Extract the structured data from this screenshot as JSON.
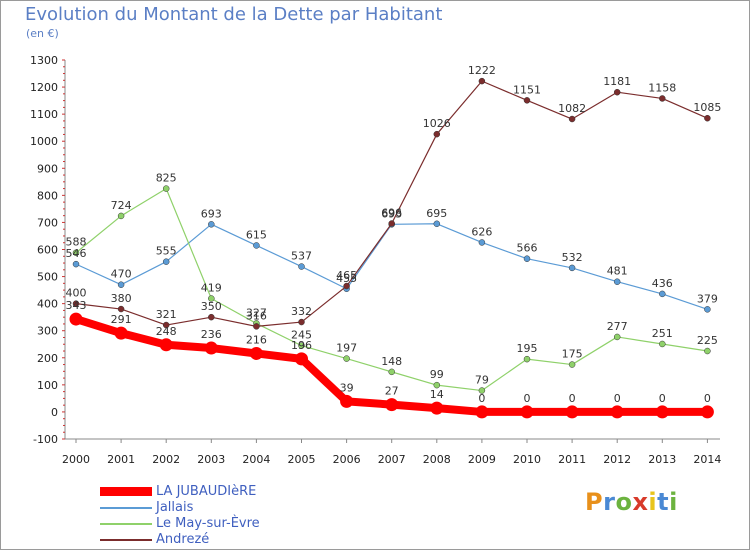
{
  "header": {
    "title": "Evolution du Montant de la Dette par Habitant",
    "subtitle": "(en €)"
  },
  "logo": {
    "text": "Proxiti",
    "letter_colors": [
      "#e8901b",
      "#4a89d4",
      "#6cb33f",
      "#d83a2a",
      "#e8c41b",
      "#4a89d4",
      "#6cb33f"
    ]
  },
  "chart_data": {
    "type": "line",
    "title": "Evolution du Montant de la Dette par Habitant",
    "subtitle": "(en €)",
    "xlabel": "",
    "ylabel": "",
    "x": [
      "2000",
      "2001",
      "2002",
      "2003",
      "2004",
      "2005",
      "2006",
      "2007",
      "2008",
      "2009",
      "2010",
      "2011",
      "2012",
      "2013",
      "2014"
    ],
    "ylim": [
      -100,
      1300
    ],
    "yticks": [
      "-100",
      "0",
      "100",
      "200",
      "300",
      "400",
      "500",
      "600",
      "700",
      "800",
      "900",
      "1000",
      "1100",
      "1200",
      "1300"
    ],
    "grid": false,
    "legend_position": "bottom-left",
    "series": [
      {
        "name": "LA JUBAUDIèRE",
        "color": "#ff0000",
        "emphasis": true,
        "values": [
          343,
          291,
          248,
          236,
          216,
          196,
          39,
          27,
          14,
          0,
          0,
          0,
          0,
          0,
          0
        ],
        "labels": [
          "343",
          "291",
          "248",
          "236",
          "216",
          "196",
          "39",
          "27",
          "14",
          "0",
          "0",
          "0",
          "0",
          "0",
          "0"
        ]
      },
      {
        "name": "Jallais",
        "color": "#5b9bd5",
        "emphasis": false,
        "values": [
          546,
          470,
          555,
          693,
          615,
          537,
          455,
          693,
          695,
          626,
          566,
          532,
          481,
          436,
          379
        ],
        "labels": [
          "546",
          "470",
          "555",
          "693",
          "615",
          "537",
          "455",
          "693",
          "695",
          "626",
          "566",
          "532",
          "481",
          "436",
          "379"
        ]
      },
      {
        "name": "Le May-sur-Èvre",
        "color": "#8fd16a",
        "emphasis": false,
        "values": [
          588,
          724,
          825,
          419,
          327,
          245,
          197,
          148,
          99,
          79,
          195,
          175,
          277,
          251,
          225
        ],
        "labels": [
          "588",
          "724",
          "825",
          "419",
          "327",
          "245",
          "197",
          "148",
          "99",
          "79",
          "195",
          "175",
          "277",
          "251",
          "225"
        ]
      },
      {
        "name": "Andrezé",
        "color": "#7b2d2d",
        "emphasis": false,
        "values": [
          400,
          380,
          321,
          350,
          316,
          332,
          465,
          696,
          1026,
          1222,
          1151,
          1082,
          1181,
          1158,
          1085
        ],
        "labels": [
          "400",
          "380",
          "321",
          "350",
          "316",
          "332",
          "465",
          "696",
          "1026",
          "1222",
          "1151",
          "1082",
          "1181",
          "1158",
          "1085"
        ]
      }
    ]
  }
}
